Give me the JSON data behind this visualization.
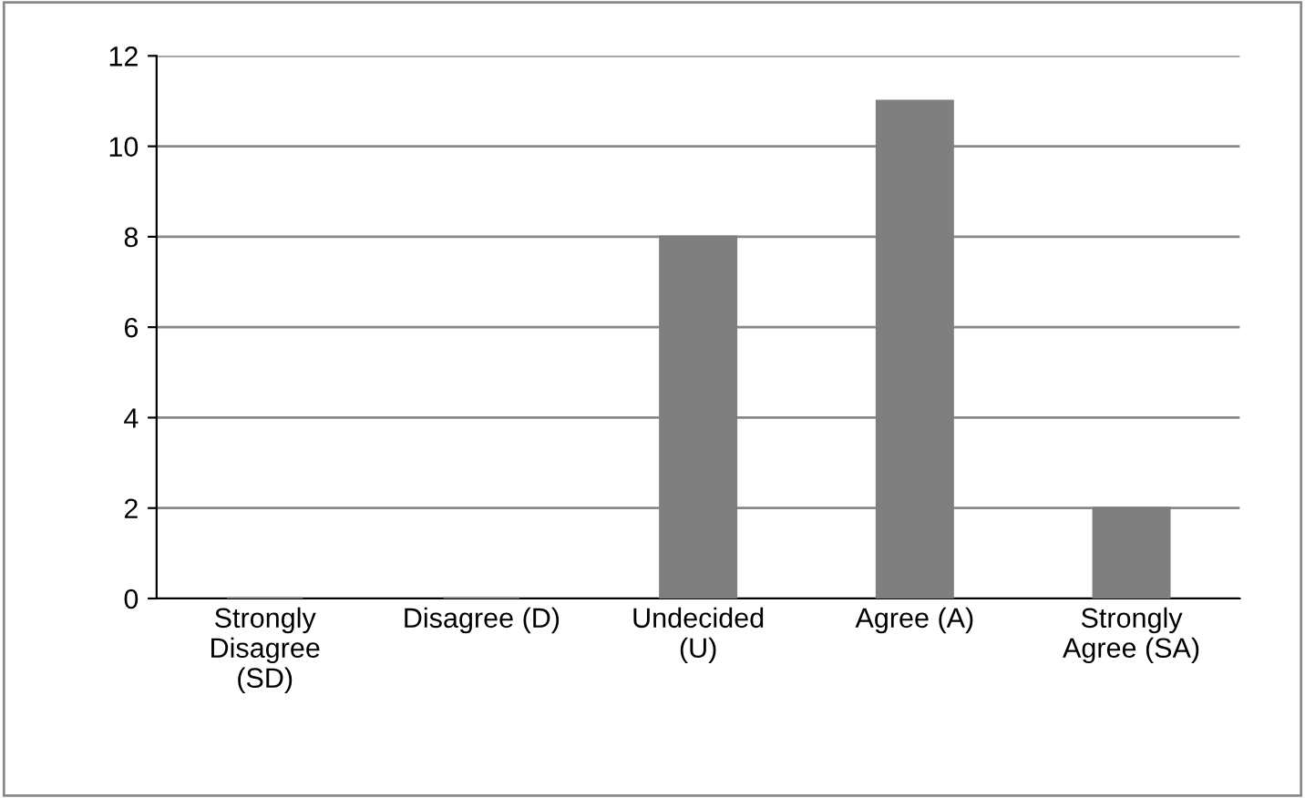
{
  "chart_data": {
    "type": "bar",
    "categories": [
      "Strongly\nDisagree\n(SD)",
      "Disagree (D)",
      "Undecided\n(U)",
      "Agree (A)",
      "Strongly\nAgree (SA)"
    ],
    "values": [
      0,
      0,
      8,
      11,
      2
    ],
    "color": "#7f7f7f",
    "ylim": [
      0,
      12
    ],
    "yticks": [
      0,
      2,
      4,
      6,
      8,
      10,
      12
    ],
    "grid": "y",
    "legend": false
  }
}
